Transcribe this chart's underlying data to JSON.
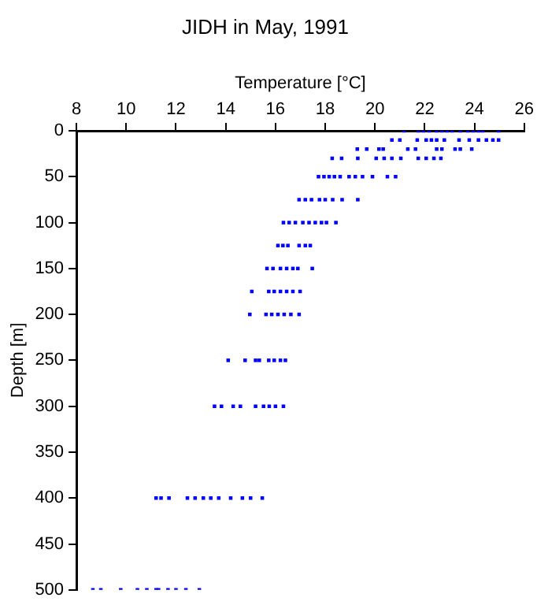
{
  "chart_data": {
    "type": "scatter",
    "title": "JIDH in May, 1991",
    "xlabel": "Temperature [°C]",
    "ylabel": "Depth [m]",
    "marker": "square",
    "grid": false,
    "xlim": [
      8,
      26
    ],
    "xticks": [
      8,
      10,
      12,
      14,
      16,
      18,
      20,
      22,
      24,
      26
    ],
    "ylim": [
      500,
      0
    ],
    "yticks": [
      0,
      50,
      100,
      150,
      200,
      250,
      300,
      350,
      400,
      450,
      500
    ],
    "series": [
      {
        "color": "#0000ff",
        "x": [
          21.17,
          21.74,
          21.95,
          22.18,
          22.48,
          22.69,
          22.9,
          23.1,
          23.43,
          23.74,
          23.95,
          24.16,
          24.33,
          24.97,
          20.68,
          21.0,
          21.7,
          22.06,
          22.27,
          22.48,
          22.79,
          23.38,
          23.79,
          24.16,
          24.48,
          24.74,
          24.97,
          19.29,
          19.67,
          20.16,
          20.33,
          21.32,
          21.63,
          22.48,
          22.69,
          23.22,
          23.43,
          23.89,
          18.28,
          18.66,
          19.31,
          20.05,
          20.37,
          20.68,
          21.04,
          21.74,
          22.06,
          22.37,
          22.65,
          17.73,
          17.95,
          18.16,
          18.37,
          18.6,
          18.96,
          19.21,
          19.5,
          19.9,
          20.5,
          20.83,
          16.95,
          17.2,
          17.45,
          17.77,
          18.0,
          18.3,
          18.68,
          19.31,
          16.32,
          16.55,
          16.8,
          17.1,
          17.35,
          17.6,
          17.85,
          18.05,
          18.43,
          16.1,
          16.3,
          16.5,
          16.95,
          17.2,
          17.4,
          15.66,
          15.9,
          16.2,
          16.45,
          16.7,
          16.9,
          17.48,
          15.05,
          15.73,
          15.95,
          16.2,
          16.45,
          16.7,
          16.99,
          14.97,
          15.62,
          15.85,
          16.1,
          16.35,
          16.62,
          16.95,
          14.1,
          14.78,
          15.2,
          15.35,
          15.73,
          15.95,
          16.2,
          16.4,
          13.55,
          13.83,
          14.3,
          14.59,
          15.2,
          15.52,
          15.75,
          16.0,
          16.32,
          11.2,
          11.4,
          11.72,
          12.46,
          12.77,
          13.1,
          13.4,
          13.72,
          14.2,
          14.67,
          15.0,
          15.47,
          8.66,
          8.98,
          9.78,
          10.45,
          10.83,
          11.2,
          11.3,
          11.68,
          12.0,
          12.4,
          12.94
        ],
        "values": [
          0,
          0,
          0,
          0,
          0,
          0,
          0,
          0,
          0,
          0,
          0,
          0,
          0,
          0,
          10,
          10,
          10,
          10,
          10,
          10,
          10,
          10,
          10,
          10,
          10,
          10,
          10,
          20,
          20,
          20,
          20,
          20,
          20,
          20,
          20,
          20,
          20,
          20,
          30,
          30,
          30,
          30,
          30,
          30,
          30,
          30,
          30,
          30,
          30,
          50,
          50,
          50,
          50,
          50,
          50,
          50,
          50,
          50,
          50,
          50,
          75,
          75,
          75,
          75,
          75,
          75,
          75,
          75,
          100,
          100,
          100,
          100,
          100,
          100,
          100,
          100,
          100,
          125,
          125,
          125,
          125,
          125,
          125,
          150,
          150,
          150,
          150,
          150,
          150,
          150,
          175,
          175,
          175,
          175,
          175,
          175,
          175,
          200,
          200,
          200,
          200,
          200,
          200,
          200,
          250,
          250,
          250,
          250,
          250,
          250,
          250,
          250,
          300,
          300,
          300,
          300,
          300,
          300,
          300,
          300,
          300,
          400,
          400,
          400,
          400,
          400,
          400,
          400,
          400,
          400,
          400,
          400,
          400,
          500,
          500,
          500,
          500,
          500,
          500,
          500,
          500,
          500,
          500,
          500
        ]
      }
    ]
  }
}
